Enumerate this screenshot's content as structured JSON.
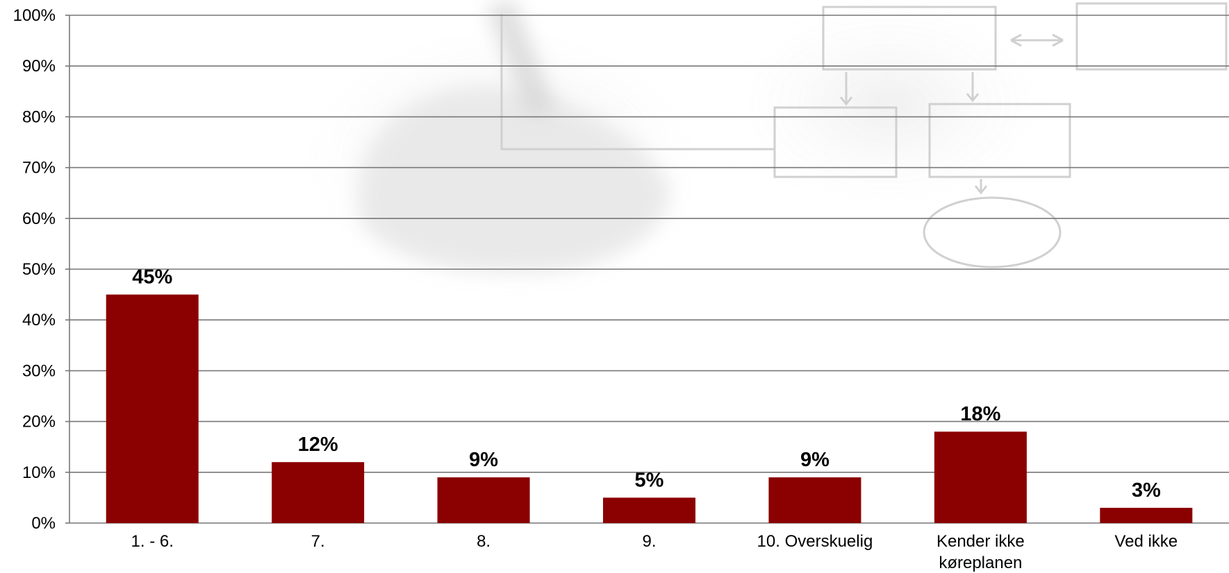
{
  "chart_data": {
    "type": "bar",
    "categories": [
      "1. - 6.",
      "7.",
      "8.",
      "9.",
      "10. Overskuelig",
      "Kender ikke køreplanen",
      "Ved ikke"
    ],
    "category_lines": [
      [
        "1. - 6."
      ],
      [
        "7."
      ],
      [
        "8."
      ],
      [
        "9."
      ],
      [
        "10. Overskuelig"
      ],
      [
        "Kender ikke",
        "køreplanen"
      ],
      [
        "Ved ikke"
      ]
    ],
    "values": [
      45,
      12,
      9,
      5,
      9,
      18,
      3
    ],
    "data_labels": [
      "45%",
      "12%",
      "9%",
      "5%",
      "9%",
      "18%",
      "3%"
    ],
    "ylim": [
      0,
      100
    ],
    "yticks": [
      0,
      10,
      20,
      30,
      40,
      50,
      60,
      70,
      80,
      90,
      100
    ],
    "ytick_labels": [
      "0%",
      "10%",
      "20%",
      "30%",
      "40%",
      "50%",
      "60%",
      "70%",
      "80%",
      "90%",
      "100%"
    ],
    "grid": true,
    "legend": "none",
    "bar_color": "#8b0000",
    "grid_color": "#777777",
    "background_image": "hand-drawing-flowchart"
  }
}
